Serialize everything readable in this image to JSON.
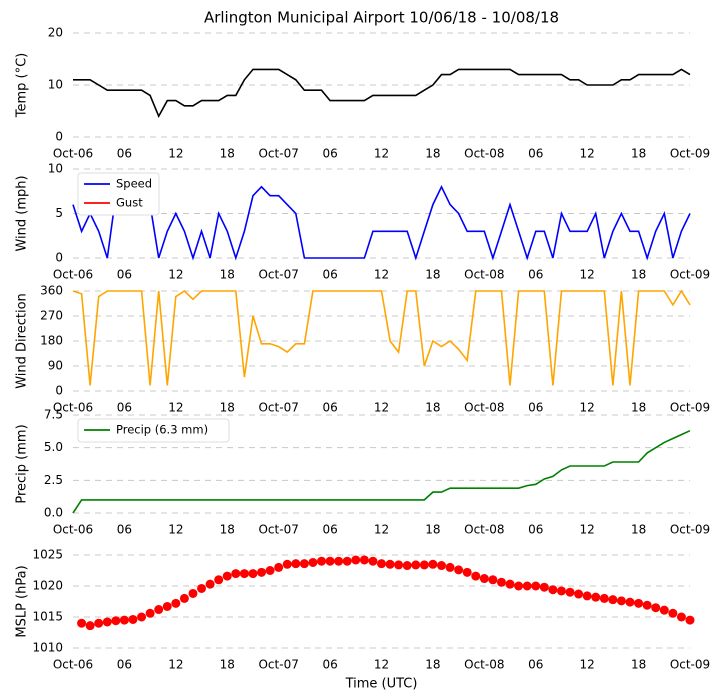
{
  "chart_data": [
    {
      "type": "line",
      "title": "Arlington Municipal Airport 10/06/18 - 10/08/18",
      "ylabel": "Temp (°C)",
      "x": [
        0,
        1,
        2,
        3,
        4,
        5,
        6,
        7,
        8,
        9,
        10,
        11,
        12,
        13,
        14,
        15,
        16,
        17,
        18,
        19,
        20,
        21,
        22,
        23,
        24,
        25,
        26,
        27,
        28,
        29,
        30,
        31,
        32,
        33,
        34,
        35,
        36,
        37,
        38,
        39,
        40,
        41,
        42,
        43,
        44,
        45,
        46,
        47,
        48,
        49,
        50,
        51,
        52,
        53,
        54,
        55,
        56,
        57,
        58,
        59,
        60,
        61,
        62,
        63,
        64,
        65,
        66,
        67,
        68,
        69,
        70,
        71,
        72
      ],
      "series": [
        {
          "name": "Temp",
          "color": "#000000",
          "values": [
            11,
            11,
            11,
            10,
            9,
            9,
            9,
            9,
            9,
            8,
            4,
            7,
            7,
            6,
            6,
            7,
            7,
            7,
            8,
            8,
            11,
            13,
            13,
            13,
            13,
            12,
            11,
            9,
            9,
            9,
            7,
            7,
            7,
            7,
            7,
            8,
            8,
            8,
            8,
            8,
            8,
            9,
            10,
            12,
            12,
            13,
            13,
            13,
            13,
            13,
            13,
            13,
            12,
            12,
            12,
            12,
            12,
            12,
            11,
            11,
            10,
            10,
            10,
            10,
            11,
            11,
            12,
            12,
            12,
            12,
            12,
            13,
            12
          ]
        }
      ],
      "xlim": [
        0,
        72
      ],
      "ylim": [
        0,
        20
      ],
      "yticks": [
        0,
        10,
        20
      ],
      "grid": true,
      "xticks": [
        {
          "value": 0,
          "label": "Oct-06"
        },
        {
          "value": 6,
          "label": "06"
        },
        {
          "value": 12,
          "label": "12"
        },
        {
          "value": 18,
          "label": "18"
        },
        {
          "value": 24,
          "label": "Oct-07"
        },
        {
          "value": 30,
          "label": "06"
        },
        {
          "value": 36,
          "label": "12"
        },
        {
          "value": 42,
          "label": "18"
        },
        {
          "value": 48,
          "label": "Oct-08"
        },
        {
          "value": 54,
          "label": "06"
        },
        {
          "value": 60,
          "label": "12"
        },
        {
          "value": 66,
          "label": "18"
        },
        {
          "value": 72,
          "label": "Oct-09"
        }
      ]
    },
    {
      "type": "line",
      "ylabel": "Wind (mph)",
      "legend": "upper left",
      "x": [
        0,
        1,
        2,
        3,
        4,
        5,
        6,
        7,
        8,
        9,
        10,
        11,
        12,
        13,
        14,
        15,
        16,
        17,
        18,
        19,
        20,
        21,
        22,
        23,
        24,
        25,
        26,
        27,
        28,
        29,
        30,
        31,
        32,
        33,
        34,
        35,
        36,
        37,
        38,
        39,
        40,
        41,
        42,
        43,
        44,
        45,
        46,
        47,
        48,
        49,
        50,
        51,
        52,
        53,
        54,
        55,
        56,
        57,
        58,
        59,
        60,
        61,
        62,
        63,
        64,
        65,
        66,
        67,
        68,
        69,
        70,
        71,
        72
      ],
      "series": [
        {
          "name": "Speed",
          "color": "#0000ff",
          "values": [
            6,
            3,
            5,
            3,
            0,
            7,
            6,
            6,
            6,
            6,
            0,
            3,
            5,
            3,
            0,
            3,
            0,
            5,
            3,
            0,
            3,
            7,
            8,
            7,
            7,
            6,
            5,
            0,
            0,
            0,
            0,
            0,
            0,
            0,
            0,
            3,
            3,
            3,
            3,
            3,
            0,
            3,
            6,
            8,
            6,
            5,
            3,
            3,
            3,
            0,
            3,
            6,
            3,
            0,
            3,
            3,
            0,
            5,
            3,
            3,
            3,
            5,
            0,
            3,
            5,
            3,
            3,
            0,
            3,
            5,
            0,
            3,
            5
          ]
        },
        {
          "name": "Gust",
          "color": "#ff0000",
          "values": [
            null,
            null,
            null,
            null,
            null,
            null,
            null,
            null,
            null,
            null,
            null,
            null,
            null,
            null,
            null,
            null,
            null,
            null,
            null,
            null,
            null,
            null,
            null,
            null,
            null,
            null,
            null,
            null,
            null,
            null,
            null,
            null,
            null,
            null,
            null,
            null,
            null,
            null,
            null,
            null,
            null,
            null,
            null,
            null,
            null,
            null,
            null,
            null,
            null,
            null,
            null,
            null,
            null,
            null,
            null,
            null,
            null,
            null,
            null,
            null,
            null,
            null,
            null,
            null,
            null,
            null,
            null,
            null,
            null,
            null,
            null,
            null,
            null
          ]
        }
      ],
      "xlim": [
        0,
        72
      ],
      "ylim": [
        0,
        10
      ],
      "yticks": [
        0,
        5,
        10
      ],
      "grid": true,
      "xticks": [
        {
          "value": 0,
          "label": "Oct-06"
        },
        {
          "value": 6,
          "label": "06"
        },
        {
          "value": 12,
          "label": "12"
        },
        {
          "value": 18,
          "label": "18"
        },
        {
          "value": 24,
          "label": "Oct-07"
        },
        {
          "value": 30,
          "label": "06"
        },
        {
          "value": 36,
          "label": "12"
        },
        {
          "value": 42,
          "label": "18"
        },
        {
          "value": 48,
          "label": "Oct-08"
        },
        {
          "value": 54,
          "label": "06"
        },
        {
          "value": 60,
          "label": "12"
        },
        {
          "value": 66,
          "label": "18"
        },
        {
          "value": 72,
          "label": "Oct-09"
        }
      ]
    },
    {
      "type": "line",
      "ylabel": "Wind Direction",
      "x": [
        0,
        1,
        2,
        3,
        4,
        5,
        6,
        7,
        8,
        9,
        10,
        11,
        12,
        13,
        14,
        15,
        16,
        17,
        18,
        19,
        20,
        21,
        22,
        23,
        24,
        25,
        26,
        27,
        28,
        29,
        30,
        31,
        32,
        33,
        34,
        35,
        36,
        37,
        38,
        39,
        40,
        41,
        42,
        43,
        44,
        45,
        46,
        47,
        48,
        49,
        50,
        51,
        52,
        53,
        54,
        55,
        56,
        57,
        58,
        59,
        60,
        61,
        62,
        63,
        64,
        65,
        66,
        67,
        68,
        69,
        70,
        71,
        72
      ],
      "series": [
        {
          "name": "Direction",
          "color": "#ffa500",
          "values": [
            360,
            350,
            20,
            340,
            360,
            360,
            360,
            360,
            360,
            20,
            360,
            20,
            340,
            360,
            330,
            360,
            360,
            360,
            360,
            360,
            50,
            270,
            170,
            170,
            160,
            140,
            170,
            170,
            360,
            360,
            360,
            360,
            360,
            360,
            360,
            360,
            360,
            180,
            140,
            360,
            360,
            90,
            180,
            160,
            180,
            150,
            110,
            360,
            360,
            360,
            360,
            20,
            360,
            360,
            360,
            360,
            20,
            360,
            360,
            360,
            360,
            360,
            360,
            20,
            360,
            20,
            360,
            360,
            360,
            360,
            310,
            360,
            310
          ]
        }
      ],
      "xlim": [
        0,
        72
      ],
      "ylim": [
        0,
        360
      ],
      "yticks": [
        0,
        90,
        180,
        270,
        360
      ],
      "grid": true,
      "xticks": [
        {
          "value": 0,
          "label": "Oct-06"
        },
        {
          "value": 6,
          "label": "06"
        },
        {
          "value": 12,
          "label": "12"
        },
        {
          "value": 18,
          "label": "18"
        },
        {
          "value": 24,
          "label": "Oct-07"
        },
        {
          "value": 30,
          "label": "06"
        },
        {
          "value": 36,
          "label": "12"
        },
        {
          "value": 42,
          "label": "18"
        },
        {
          "value": 48,
          "label": "Oct-08"
        },
        {
          "value": 54,
          "label": "06"
        },
        {
          "value": 60,
          "label": "12"
        },
        {
          "value": 66,
          "label": "18"
        },
        {
          "value": 72,
          "label": "Oct-09"
        }
      ]
    },
    {
      "type": "line",
      "ylabel": "Precip (mm)",
      "legend": "upper left",
      "x": [
        0,
        1,
        2,
        3,
        4,
        5,
        6,
        7,
        8,
        9,
        10,
        11,
        12,
        13,
        14,
        15,
        16,
        17,
        18,
        19,
        20,
        21,
        22,
        23,
        24,
        25,
        26,
        27,
        28,
        29,
        30,
        31,
        32,
        33,
        34,
        35,
        36,
        37,
        38,
        39,
        40,
        41,
        42,
        43,
        44,
        45,
        46,
        47,
        48,
        49,
        50,
        51,
        52,
        53,
        54,
        55,
        56,
        57,
        58,
        59,
        60,
        61,
        62,
        63,
        64,
        65,
        66,
        67,
        68,
        69,
        70,
        71,
        72
      ],
      "series": [
        {
          "name": "Precip (6.3 mm)",
          "color": "#008000",
          "values": [
            0,
            1,
            1,
            1,
            1,
            1,
            1,
            1,
            1,
            1,
            1,
            1,
            1,
            1,
            1,
            1,
            1,
            1,
            1,
            1,
            1,
            1,
            1,
            1,
            1,
            1,
            1,
            1,
            1,
            1,
            1,
            1,
            1,
            1,
            1,
            1,
            1,
            1,
            1,
            1,
            1,
            1,
            1.6,
            1.6,
            1.9,
            1.9,
            1.9,
            1.9,
            1.9,
            1.9,
            1.9,
            1.9,
            1.9,
            2.1,
            2.2,
            2.6,
            2.8,
            3.3,
            3.6,
            3.6,
            3.6,
            3.6,
            3.6,
            3.9,
            3.9,
            3.9,
            3.9,
            4.6,
            5.0,
            5.4,
            5.7,
            6.0,
            6.3
          ]
        }
      ],
      "xlim": [
        0,
        72
      ],
      "ylim": [
        0,
        7.5
      ],
      "yticks": [
        {
          "value": 0,
          "label": "0.0"
        },
        2.5,
        {
          "value": 5,
          "label": "5.0"
        },
        7.5
      ],
      "grid": true,
      "xticks": [
        {
          "value": 0,
          "label": "Oct-06"
        },
        {
          "value": 6,
          "label": "06"
        },
        {
          "value": 12,
          "label": "12"
        },
        {
          "value": 18,
          "label": "18"
        },
        {
          "value": 24,
          "label": "Oct-07"
        },
        {
          "value": 30,
          "label": "06"
        },
        {
          "value": 36,
          "label": "12"
        },
        {
          "value": 42,
          "label": "18"
        },
        {
          "value": 48,
          "label": "Oct-08"
        },
        {
          "value": 54,
          "label": "06"
        },
        {
          "value": 60,
          "label": "12"
        },
        {
          "value": 66,
          "label": "18"
        },
        {
          "value": 72,
          "label": "Oct-09"
        }
      ]
    },
    {
      "type": "scatter",
      "ylabel": "MSLP (hPa)",
      "xlabel": "Time (UTC)",
      "x": [
        1,
        2,
        3,
        4,
        5,
        6,
        7,
        8,
        9,
        10,
        11,
        12,
        13,
        14,
        15,
        16,
        17,
        18,
        19,
        20,
        21,
        22,
        23,
        24,
        25,
        26,
        27,
        28,
        29,
        30,
        31,
        32,
        33,
        34,
        35,
        36,
        37,
        38,
        39,
        40,
        41,
        42,
        43,
        44,
        45,
        46,
        47,
        48,
        49,
        50,
        51,
        52,
        53,
        54,
        55,
        56,
        57,
        58,
        59,
        60,
        61,
        62,
        63,
        64,
        65,
        66,
        67,
        68,
        69,
        70,
        71,
        72
      ],
      "series": [
        {
          "name": "MSLP",
          "color": "#ff0000",
          "values": [
            1014,
            1013.6,
            1014,
            1014.2,
            1014.4,
            1014.5,
            1014.6,
            1015,
            1015.6,
            1016.2,
            1016.7,
            1017.2,
            1018,
            1018.8,
            1019.6,
            1020.3,
            1021,
            1021.6,
            1022,
            1022,
            1022,
            1022.2,
            1022.5,
            1023,
            1023.5,
            1023.6,
            1023.6,
            1023.8,
            1024,
            1024,
            1024,
            1024,
            1024.2,
            1024.2,
            1024,
            1023.6,
            1023.5,
            1023.4,
            1023.3,
            1023.4,
            1023.4,
            1023.5,
            1023.3,
            1023,
            1022.6,
            1022.2,
            1021.6,
            1021.2,
            1021,
            1020.6,
            1020.3,
            1020,
            1020,
            1020,
            1019.8,
            1019.4,
            1019.2,
            1019,
            1018.7,
            1018.4,
            1018.2,
            1018,
            1017.8,
            1017.6,
            1017.4,
            1017.2,
            1016.9,
            1016.5,
            1016.1,
            1015.6,
            1015,
            1014.5
          ]
        }
      ],
      "xlim": [
        0,
        72
      ],
      "ylim": [
        1010,
        1025
      ],
      "yticks": [
        1010,
        1015,
        1020,
        1025
      ],
      "grid": true,
      "xticks": [
        {
          "value": 0,
          "label": "Oct-06"
        },
        {
          "value": 6,
          "label": "06"
        },
        {
          "value": 12,
          "label": "12"
        },
        {
          "value": 18,
          "label": "18"
        },
        {
          "value": 24,
          "label": "Oct-07"
        },
        {
          "value": 30,
          "label": "06"
        },
        {
          "value": 36,
          "label": "12"
        },
        {
          "value": 42,
          "label": "18"
        },
        {
          "value": 48,
          "label": "Oct-08"
        },
        {
          "value": 54,
          "label": "06"
        },
        {
          "value": 60,
          "label": "12"
        },
        {
          "value": 66,
          "label": "18"
        },
        {
          "value": 72,
          "label": "Oct-09"
        }
      ]
    }
  ]
}
